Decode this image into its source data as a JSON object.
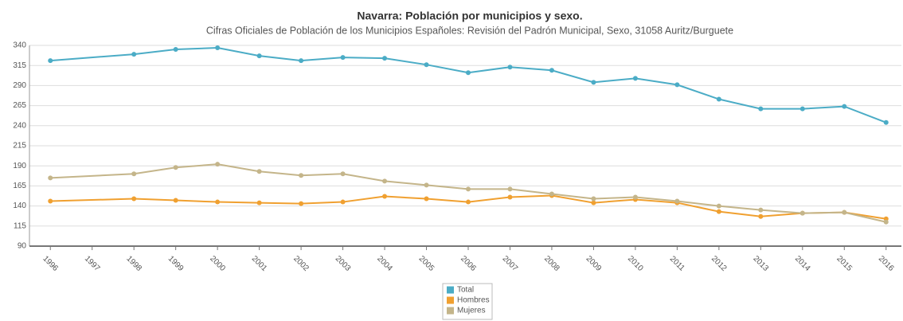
{
  "chart_data": {
    "type": "line",
    "title": "Navarra: Población por municipios y sexo.",
    "subtitle": "Cifras Oficiales de Población de los Municipios Españoles: Revisión del Padrón Municipal, Sexo, 31058 Auritz/Burguete",
    "x": [
      1996,
      1998,
      1999,
      2000,
      2001,
      2002,
      2003,
      2004,
      2005,
      2006,
      2007,
      2008,
      2009,
      2010,
      2011,
      2012,
      2013,
      2014,
      2015,
      2016
    ],
    "series": [
      {
        "name": "Total",
        "color": "#4bacc6",
        "values": [
          321,
          329,
          335,
          337,
          327,
          321,
          325,
          324,
          316,
          306,
          313,
          309,
          294,
          299,
          291,
          273,
          261,
          261,
          264,
          244
        ]
      },
      {
        "name": "Hombres",
        "color": "#f0a030",
        "values": [
          146,
          149,
          147,
          145,
          144,
          143,
          145,
          152,
          149,
          145,
          151,
          153,
          144,
          148,
          144,
          133,
          127,
          131,
          132,
          124
        ]
      },
      {
        "name": "Mujeres",
        "color": "#c4b58a",
        "values": [
          175,
          180,
          188,
          192,
          183,
          178,
          180,
          171,
          166,
          161,
          161,
          155,
          149,
          151,
          146,
          140,
          135,
          131,
          132,
          120
        ]
      }
    ],
    "xlim": [
      1995.5,
      2016.5
    ],
    "xticks": [
      1996,
      1997,
      1998,
      1999,
      2000,
      2001,
      2002,
      2003,
      2004,
      2005,
      2006,
      2007,
      2008,
      2009,
      2010,
      2011,
      2012,
      2013,
      2014,
      2015,
      2016
    ],
    "ylim": [
      90,
      340
    ],
    "yticks": [
      90,
      115,
      140,
      165,
      190,
      215,
      240,
      265,
      290,
      315,
      340
    ],
    "grid": true
  }
}
